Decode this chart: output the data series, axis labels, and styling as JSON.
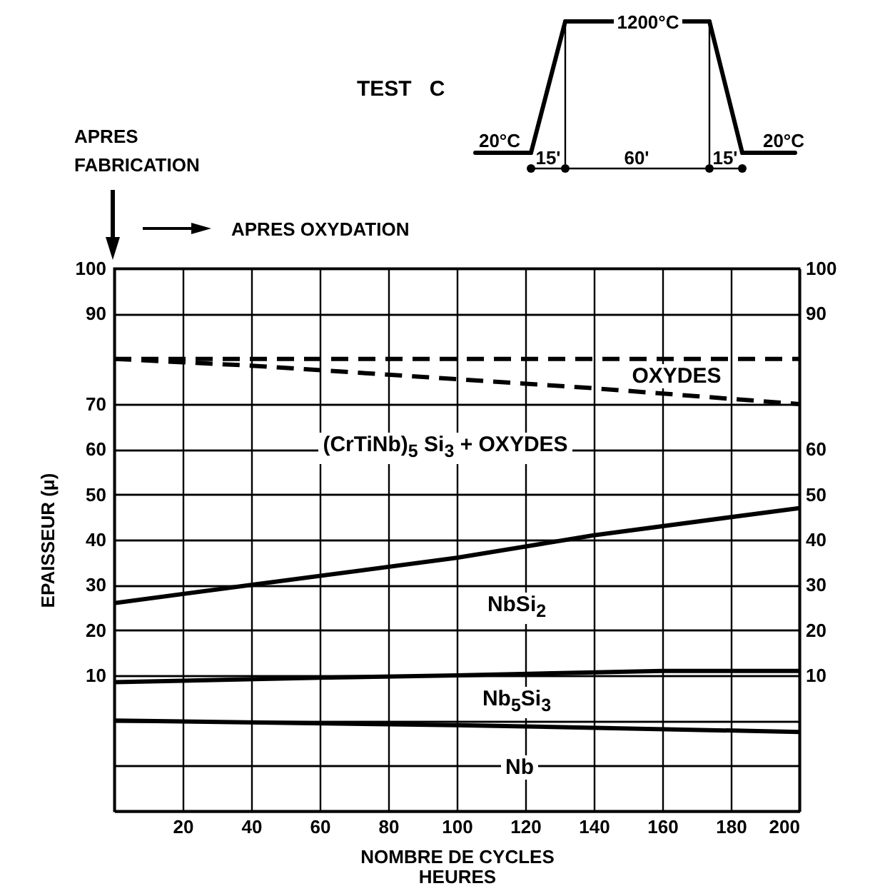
{
  "chart_data": {
    "type": "line",
    "title": "TEST C",
    "xlabel": "NOMBRE DE CYCLES\nHEURES",
    "ylabel": "EPAISSEUR (μ)",
    "xlim": [
      0,
      200
    ],
    "ylim": [
      -20,
      100
    ],
    "y2lim": [
      -20,
      100
    ],
    "xticks": [
      {
        "value": 0,
        "label": null
      },
      20,
      40,
      60,
      80,
      100,
      120,
      140,
      160,
      180,
      200
    ],
    "yticks": [
      {
        "value": -20,
        "label": null
      },
      {
        "value": -10,
        "label": null
      },
      {
        "value": 0,
        "label": null
      },
      10,
      20,
      30,
      40,
      50,
      60,
      70,
      90,
      100
    ],
    "y2ticks": [
      {
        "value": -20,
        "label": null
      },
      {
        "value": -10,
        "label": null
      },
      {
        "value": 0,
        "label": null
      },
      10,
      20,
      30,
      40,
      50,
      60,
      {
        "value": 70,
        "label": null
      },
      90,
      100
    ],
    "grid": true,
    "marker": "none",
    "series": [
      {
        "color": "#000000",
        "line_style": "dashed",
        "x": [
          0,
          200
        ],
        "values": [
          80,
          80
        ]
      },
      {
        "color": "#000000",
        "line_style": "dashed",
        "x": [
          0,
          40,
          100,
          140,
          200
        ],
        "values": [
          80,
          78.5,
          75.5,
          73.5,
          70
        ]
      },
      {
        "color": "#000000",
        "line_style": "solid",
        "x": [
          0,
          40,
          100,
          140,
          200
        ],
        "values": [
          26,
          30,
          36,
          41,
          47
        ]
      },
      {
        "color": "#000000",
        "line_style": "solid",
        "x": [
          0,
          60,
          100,
          160,
          200
        ],
        "values": [
          8.5,
          9.5,
          10,
          11,
          11
        ]
      },
      {
        "color": "#000000",
        "line_style": "solid",
        "x": [
          0,
          100,
          200
        ],
        "values": [
          0,
          -1,
          -2.5
        ]
      }
    ],
    "annotations": [
      "APRES FABRICATION",
      "APRES OXYDATION",
      "1200°C",
      "20°C",
      "15'",
      "60'",
      "15'",
      "20°C",
      "OXYDES",
      "(CrTiNb)$_{5}$ Si$_{3}$  +  OXYDES",
      "NbSi$_{2}$",
      "Nb$_{5}$Si$_{3}$",
      "Nb"
    ]
  }
}
